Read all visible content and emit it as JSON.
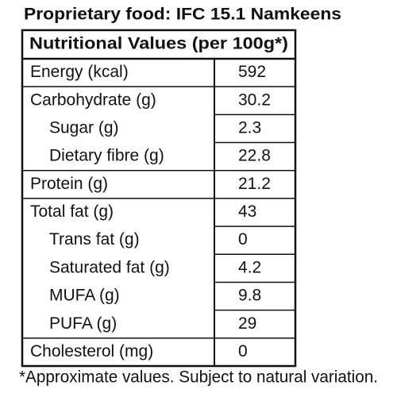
{
  "title": "Proprietary food: IFC 15.1 Namkeens",
  "table": {
    "header": "Nutritional Values (per 100g*)",
    "rows": [
      {
        "label": "Energy (kcal)",
        "value": "592"
      },
      {
        "label": "Carbohydrate (g)",
        "value": "30.2",
        "sub": [
          {
            "label": "Sugar (g)",
            "value": "2.3"
          },
          {
            "label": "Dietary fibre (g)",
            "value": "22.8"
          }
        ]
      },
      {
        "label": "Protein (g)",
        "value": "21.2"
      },
      {
        "label": "Total fat (g)",
        "value": "43",
        "sub": [
          {
            "label": "Trans fat (g)",
            "value": "0"
          },
          {
            "label": "Saturated fat (g)",
            "value": "4.2"
          },
          {
            "label": "MUFA (g)",
            "value": "9.8"
          },
          {
            "label": "PUFA (g)",
            "value": "29"
          }
        ]
      },
      {
        "label": "Cholesterol (mg)",
        "value": "0"
      }
    ]
  },
  "footnote": "*Approximate values. Subject to natural variation."
}
